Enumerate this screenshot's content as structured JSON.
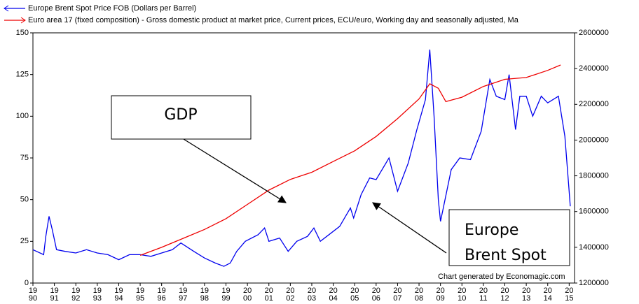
{
  "chart_data": {
    "type": "line",
    "xlim": [
      1990,
      2015.25
    ],
    "xticks": [
      1990,
      1991,
      1992,
      1993,
      1994,
      1995,
      1996,
      1997,
      1998,
      1999,
      2000,
      2001,
      2002,
      2003,
      2004,
      2005,
      2006,
      2007,
      2008,
      2009,
      2010,
      2011,
      2012,
      2013,
      2014,
      2015
    ],
    "ylim": [
      0,
      150
    ],
    "yticks": [
      0,
      25,
      50,
      75,
      100,
      125,
      150
    ],
    "y2lim": [
      1200000,
      2600000
    ],
    "y2ticks": [
      1200000,
      1400000,
      1600000,
      1800000,
      2000000,
      2200000,
      2400000,
      2600000
    ],
    "grid": false,
    "series": [
      {
        "name": "Europe Brent Spot Price FOB (Dollars per Barrel)",
        "color": "#0000ee",
        "axis": "y",
        "x": [
          1990.0,
          1990.5,
          1990.6,
          1990.75,
          1990.9,
          1991.1,
          1991.5,
          1992,
          1992.5,
          1993,
          1993.5,
          1994,
          1994.5,
          1995,
          1995.5,
          1996,
          1996.5,
          1996.9,
          1997.5,
          1998,
          1998.5,
          1998.9,
          1999.2,
          1999.5,
          1999.9,
          2000.5,
          2000.8,
          2001,
          2001.5,
          2001.9,
          2002.3,
          2002.8,
          2003.1,
          2003.4,
          2003.8,
          2004.3,
          2004.8,
          2004.95,
          2005.3,
          2005.7,
          2006,
          2006.6,
          2007,
          2007.5,
          2007.9,
          2008.3,
          2008.5,
          2008.7,
          2008.9,
          2009.0,
          2009.1,
          2009.5,
          2009.9,
          2010.4,
          2010.9,
          2011.3,
          2011.6,
          2012.0,
          2012.2,
          2012.5,
          2012.7,
          2013,
          2013.3,
          2013.7,
          2014,
          2014.5,
          2014.8,
          2015.0,
          2015.05
        ],
        "values": [
          20,
          17,
          28,
          40,
          32,
          20,
          19,
          18,
          20,
          18,
          17,
          14,
          17,
          17,
          16,
          18,
          20,
          24,
          19,
          15,
          12,
          10,
          12,
          19,
          25,
          29,
          33,
          25,
          27,
          19,
          25,
          28,
          33,
          25,
          29,
          34,
          45,
          39,
          53,
          63,
          62,
          75,
          55,
          72,
          92,
          110,
          140,
          100,
          50,
          37,
          43,
          68,
          75,
          74,
          91,
          122,
          112,
          110,
          125,
          92,
          112,
          112,
          100,
          112,
          108,
          112,
          88,
          55,
          46
        ]
      },
      {
        "name": "Euro area 17 (fixed composition) - Gross domestic product at market price, Current prices, ECU/euro, Working day and seasonally adjusted, Ma",
        "color": "#ee0000",
        "axis": "y2",
        "x": [
          1995,
          1996,
          1997,
          1998,
          1999,
          2000,
          2001,
          2002,
          2003,
          2004,
          2005,
          2006,
          2007,
          2008,
          2008.5,
          2008.9,
          2009.25,
          2010,
          2011,
          2012,
          2013,
          2014,
          2014.6
        ],
        "values": [
          1355000,
          1400000,
          1450000,
          1500000,
          1560000,
          1640000,
          1720000,
          1780000,
          1820000,
          1880000,
          1940000,
          2020000,
          2120000,
          2230000,
          2315000,
          2290000,
          2215000,
          2240000,
          2300000,
          2340000,
          2350000,
          2390000,
          2420000
        ]
      }
    ],
    "annotations": [
      {
        "lines": [
          "GDP"
        ]
      },
      {
        "lines": [
          "Europe",
          "Brent Spot"
        ]
      }
    ],
    "credit": "Chart generated by Economagic.com"
  }
}
